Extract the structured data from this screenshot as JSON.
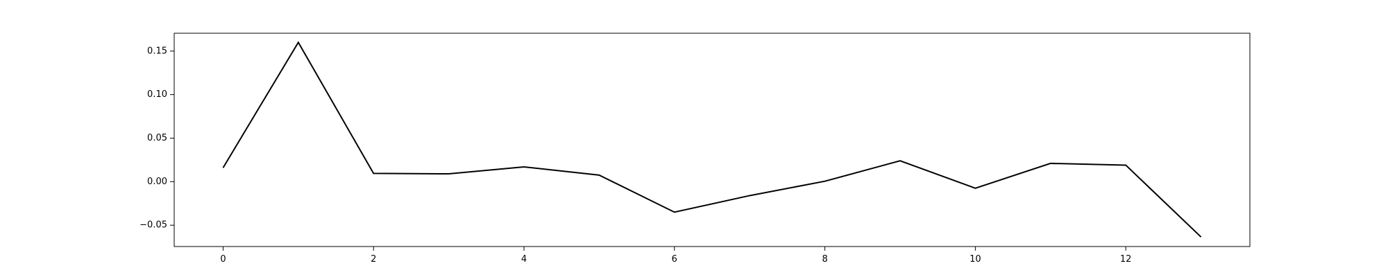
{
  "chart_data": {
    "type": "line",
    "title": "",
    "xlabel": "",
    "ylabel": "",
    "x": [
      0,
      1,
      2,
      3,
      4,
      5,
      6,
      7,
      8,
      9,
      10,
      11,
      12,
      13
    ],
    "series": [
      {
        "values": [
          0.016,
          0.16,
          0.0095,
          0.009,
          0.017,
          0.0075,
          -0.035,
          -0.016,
          0.0005,
          0.024,
          -0.0075,
          0.021,
          0.019,
          -0.0635
        ],
        "color": "#000000"
      }
    ],
    "xlim": [
      -0.65,
      13.65
    ],
    "ylim": [
      -0.0745,
      0.1705
    ],
    "x_ticks": [
      0,
      2,
      4,
      6,
      8,
      10,
      12
    ],
    "x_tick_labels": [
      "0",
      "2",
      "4",
      "6",
      "8",
      "10",
      "12"
    ],
    "y_ticks": [
      -0.05,
      0.0,
      0.05,
      0.1,
      0.15
    ],
    "y_tick_labels": [
      "−0.05",
      "0.00",
      "0.05",
      "0.10",
      "0.15"
    ],
    "grid": false,
    "legend": "none"
  }
}
